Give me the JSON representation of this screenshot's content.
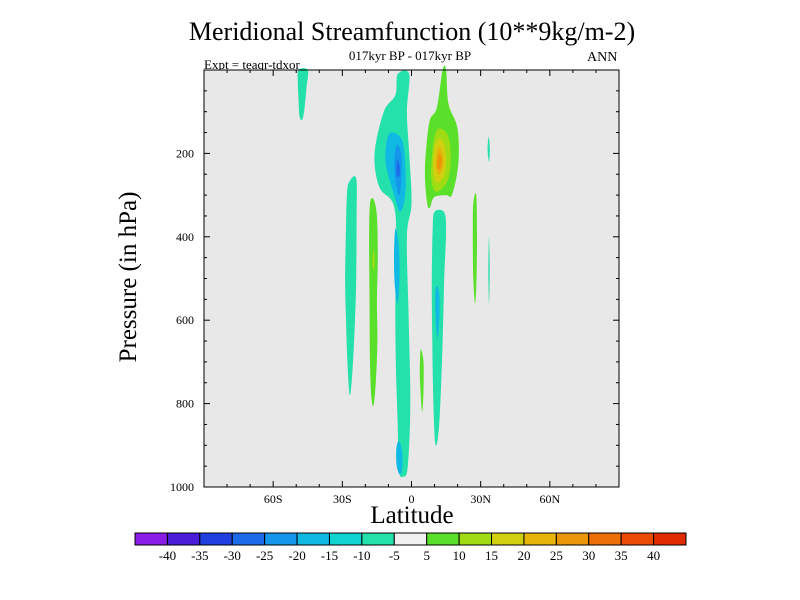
{
  "chart_data": {
    "type": "contour",
    "title": "Meridional Streamfunction (10**9kg/m-2)",
    "subtitle": "017kyr BP - 017kyr BP",
    "experiment": "Expt = teaqr-tdxor",
    "season": "ANN",
    "xlabel": "Latitude",
    "ylabel": "Pressure (in hPa)",
    "xlim": [
      -90,
      90
    ],
    "ylim": [
      0,
      1000
    ],
    "x_ticks": [
      {
        "value": -60,
        "label": "60S"
      },
      {
        "value": -30,
        "label": "30S"
      },
      {
        "value": 0,
        "label": "0"
      },
      {
        "value": 30,
        "label": "30N"
      },
      {
        "value": 60,
        "label": "60N"
      }
    ],
    "y_ticks": [
      {
        "value": 200,
        "label": "200"
      },
      {
        "value": 400,
        "label": "400"
      },
      {
        "value": 600,
        "label": "600"
      },
      {
        "value": 800,
        "label": "800"
      },
      {
        "value": 1000,
        "label": "1000"
      }
    ],
    "colorbar": {
      "labels": [
        "-40",
        "-35",
        "-30",
        "-25",
        "-20",
        "-15",
        "-10",
        "-5",
        "5",
        "10",
        "15",
        "20",
        "25",
        "30",
        "35",
        "40"
      ],
      "colors": [
        "#8a1ee6",
        "#4a1ed8",
        "#2040e0",
        "#1c6cea",
        "#1496ea",
        "#10b8e4",
        "#10d4d0",
        "#24e0aa",
        "#f0f0f0",
        "#5ae02a",
        "#a0dc14",
        "#d0d010",
        "#e6b40a",
        "#eb9608",
        "#ec7006",
        "#ea4a04",
        "#e02a02"
      ]
    },
    "contours": [
      {
        "level": "-10",
        "color": "#24e0aa",
        "points": [
          [
            -49,
            0
          ],
          [
            -45,
            0
          ],
          [
            -45.5,
            40
          ],
          [
            -46,
            70
          ],
          [
            -46.6,
            100
          ],
          [
            -47.5,
            120
          ],
          [
            -48.6,
            110
          ],
          [
            -49,
            70
          ],
          [
            -49.3,
            30
          ]
        ]
      },
      {
        "level": "-10",
        "color": "#24e0aa",
        "points": [
          [
            -24,
            260
          ],
          [
            -27,
            268
          ],
          [
            -28,
            300
          ],
          [
            -28.5,
            400
          ],
          [
            -28.8,
            500
          ],
          [
            -28.4,
            600
          ],
          [
            -27.8,
            700
          ],
          [
            -26.8,
            780
          ],
          [
            -25.6,
            720
          ],
          [
            -24.5,
            600
          ],
          [
            -24,
            500
          ],
          [
            -23.8,
            350
          ]
        ]
      },
      {
        "level": "-10",
        "color": "#24e0aa",
        "points": [
          [
            -6,
            10
          ],
          [
            -1,
            10
          ],
          [
            -2,
            100
          ],
          [
            -1,
            200
          ],
          [
            0,
            320
          ],
          [
            -2,
            400
          ],
          [
            -1.2,
            600
          ],
          [
            -0.5,
            800
          ],
          [
            -1.6,
            950
          ],
          [
            -3.5,
            975
          ],
          [
            -5.5,
            960
          ],
          [
            -6,
            850
          ],
          [
            -6.8,
            700
          ],
          [
            -7,
            550
          ],
          [
            -6.5,
            400
          ],
          [
            -8,
            320
          ],
          [
            -14,
            280
          ],
          [
            -16,
            200
          ],
          [
            -12,
            100
          ],
          [
            -7,
            60
          ]
        ]
      },
      {
        "level": "-15",
        "color": "#10b8e4",
        "points": [
          [
            -9,
            150
          ],
          [
            -4,
            170
          ],
          [
            -2.5,
            250
          ],
          [
            -3,
            310
          ],
          [
            -5,
            340
          ],
          [
            -7.5,
            300
          ],
          [
            -11,
            230
          ],
          [
            -11,
            180
          ]
        ]
      },
      {
        "level": "-20",
        "color": "#1496ea",
        "points": [
          [
            -6.5,
            180
          ],
          [
            -4.5,
            200
          ],
          [
            -4.3,
            250
          ],
          [
            -5.2,
            300
          ],
          [
            -6.5,
            280
          ],
          [
            -7.5,
            230
          ]
        ]
      },
      {
        "level": "-25",
        "color": "#1c6cea",
        "points": [
          [
            -6.2,
            215
          ],
          [
            -5.1,
            230
          ],
          [
            -5.3,
            255
          ],
          [
            -6.5,
            250
          ]
        ]
      },
      {
        "level": "-15",
        "color": "#10b8e4",
        "points": [
          [
            -7,
            380
          ],
          [
            -5.5,
            420
          ],
          [
            -5.2,
            500
          ],
          [
            -6,
            560
          ],
          [
            -7.2,
            520
          ],
          [
            -7.6,
            450
          ]
        ]
      },
      {
        "level": "-15",
        "color": "#10b8e4",
        "points": [
          [
            -5.6,
            890
          ],
          [
            -4.2,
            910
          ],
          [
            -4,
            950
          ],
          [
            -5,
            970
          ],
          [
            -6.4,
            950
          ],
          [
            -6.6,
            910
          ]
        ]
      },
      {
        "level": "-10",
        "color": "#24e0aa",
        "points": [
          [
            10,
            340
          ],
          [
            14,
            340
          ],
          [
            15,
            380
          ],
          [
            14.2,
            500
          ],
          [
            13.5,
            650
          ],
          [
            12.5,
            800
          ],
          [
            11.5,
            880
          ],
          [
            10.3,
            895
          ],
          [
            9.5,
            800
          ],
          [
            9,
            650
          ],
          [
            8.8,
            500
          ],
          [
            9.2,
            380
          ]
        ]
      },
      {
        "level": "-15",
        "color": "#10b8e4",
        "points": [
          [
            10.6,
            520
          ],
          [
            11.9,
            530
          ],
          [
            12.2,
            580
          ],
          [
            11.5,
            640
          ],
          [
            10.7,
            620
          ],
          [
            10.3,
            560
          ]
        ]
      },
      {
        "level": "-10",
        "color": "#24e0aa",
        "points": [
          [
            33.5,
            160
          ],
          [
            34,
            190
          ],
          [
            33.6,
            220
          ],
          [
            33,
            190
          ]
        ]
      },
      {
        "level": "-10",
        "color": "#24e0aa",
        "points": [
          [
            33.6,
            400
          ],
          [
            33.9,
            480
          ],
          [
            33.6,
            560
          ],
          [
            33.3,
            480
          ]
        ]
      },
      {
        "level": "5",
        "color": "#5ae02a",
        "points": [
          [
            -18,
            320
          ],
          [
            -16.5,
            310
          ],
          [
            -15,
            350
          ],
          [
            -14.6,
            450
          ],
          [
            -15,
            550
          ],
          [
            -14.8,
            650
          ],
          [
            -15.5,
            750
          ],
          [
            -16.5,
            805
          ],
          [
            -17.5,
            780
          ],
          [
            -18,
            700
          ],
          [
            -18.2,
            550
          ],
          [
            -18.4,
            400
          ]
        ]
      },
      {
        "level": "10",
        "color": "#a0dc14",
        "points": [
          [
            -16.5,
            430
          ],
          [
            -16,
            445
          ],
          [
            -16,
            470
          ],
          [
            -16.5,
            480
          ],
          [
            -17,
            460
          ]
        ]
      },
      {
        "level": "5",
        "color": "#5ae02a",
        "points": [
          [
            13.5,
            0
          ],
          [
            15,
            0
          ],
          [
            16,
            80
          ],
          [
            19.5,
            130
          ],
          [
            20.5,
            180
          ],
          [
            20,
            240
          ],
          [
            17.5,
            300
          ],
          [
            15,
            300
          ],
          [
            9.8,
            305
          ],
          [
            8,
            330
          ],
          [
            6.8,
            320
          ],
          [
            5.8,
            250
          ],
          [
            6.5,
            180
          ],
          [
            8,
            120
          ],
          [
            11,
            90
          ]
        ]
      },
      {
        "level": "10",
        "color": "#a0dc14",
        "points": [
          [
            12,
            140
          ],
          [
            15.6,
            155
          ],
          [
            17,
            200
          ],
          [
            16,
            260
          ],
          [
            12,
            290
          ],
          [
            9.5,
            285
          ],
          [
            8.5,
            250
          ],
          [
            9,
            200
          ],
          [
            10,
            160
          ]
        ]
      },
      {
        "level": "15",
        "color": "#d0d010",
        "points": [
          [
            11.8,
            165
          ],
          [
            14,
            175
          ],
          [
            15,
            215
          ],
          [
            14,
            255
          ],
          [
            11,
            270
          ],
          [
            9.4,
            240
          ],
          [
            9.9,
            190
          ]
        ]
      },
      {
        "level": "20",
        "color": "#e6b40a",
        "points": [
          [
            12,
            185
          ],
          [
            13.6,
            200
          ],
          [
            13.8,
            230
          ],
          [
            12,
            252
          ],
          [
            10.6,
            235
          ],
          [
            10.8,
            200
          ]
        ]
      },
      {
        "level": "25",
        "color": "#eb9608",
        "points": [
          [
            12,
            200
          ],
          [
            13,
            210
          ],
          [
            13,
            230
          ],
          [
            11.8,
            240
          ],
          [
            11,
            225
          ]
        ]
      },
      {
        "level": "5",
        "color": "#5ae02a",
        "points": [
          [
            4,
            670
          ],
          [
            5.2,
            700
          ],
          [
            5.2,
            770
          ],
          [
            4.6,
            820
          ],
          [
            3.8,
            760
          ],
          [
            3.6,
            720
          ]
        ]
      },
      {
        "level": "5",
        "color": "#5ae02a",
        "points": [
          [
            26.8,
            320
          ],
          [
            28.1,
            300
          ],
          [
            28.4,
            400
          ],
          [
            28.2,
            500
          ],
          [
            27.6,
            560
          ],
          [
            26.8,
            500
          ],
          [
            26.6,
            400
          ]
        ]
      }
    ]
  }
}
